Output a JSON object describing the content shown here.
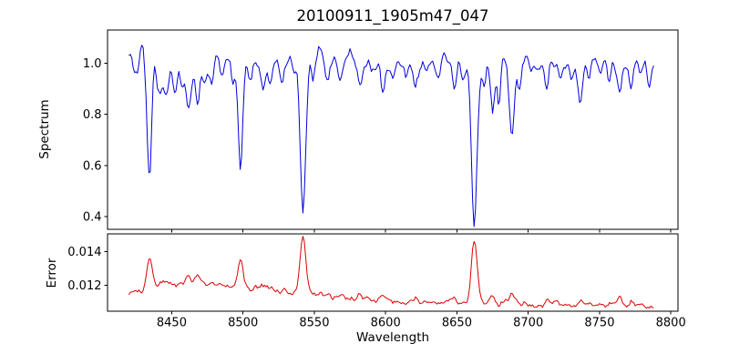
{
  "figure": {
    "background": "#ffffff",
    "spine_color": "#000000",
    "tick_color": "#000000",
    "text_color": "#000000"
  },
  "chart_data": {
    "type": "line",
    "title": "20100911_1905m47_047",
    "xlabel": "Wavelength",
    "legend": "none",
    "grid": false,
    "xlim": [
      8405,
      8805
    ],
    "xticks": [
      8450,
      8500,
      8550,
      8600,
      8650,
      8700,
      8750,
      8800
    ],
    "xtick_labels": [
      "8450",
      "8500",
      "8550",
      "8600",
      "8650",
      "8700",
      "8750",
      "8800"
    ],
    "x_start": 8420,
    "x_end": 8788,
    "x_step": 1,
    "seed": 20100911,
    "panels": [
      {
        "name": "spectrum",
        "ylabel": "Spectrum",
        "ylim": [
          0.35,
          1.13
        ],
        "yticks": [
          0.4,
          0.6,
          0.8,
          1.0
        ],
        "ytick_labels": [
          "0.4",
          "0.6",
          "0.8",
          "1.0"
        ],
        "line_color": "#0000dd",
        "continuum": 1.0,
        "noise_smooth_amp": 0.045,
        "noise_fine_amp": 0.01,
        "emission_bumps": [
          [
            8429,
            0.07,
            1.5
          ],
          [
            8437,
            0.09,
            1.2
          ],
          [
            8481,
            0.04,
            2.0
          ],
          [
            8553,
            0.05,
            1.5
          ],
          [
            8576,
            0.04,
            1.5
          ],
          [
            8609,
            0.03,
            1.5
          ],
          [
            8641,
            0.04,
            1.5
          ],
          [
            8700,
            0.03,
            1.5
          ],
          [
            8745,
            0.03,
            1.5
          ]
        ],
        "absorption_lines": [
          [
            8424,
            0.06,
            1.2
          ],
          [
            8427,
            0.05,
            1.0
          ],
          [
            8434.5,
            0.45,
            1.7
          ],
          [
            8441,
            0.1,
            1.5
          ],
          [
            8446,
            0.14,
            1.8
          ],
          [
            8452,
            0.12,
            1.4
          ],
          [
            8457,
            0.08,
            1.2
          ],
          [
            8462,
            0.17,
            2.2
          ],
          [
            8468,
            0.14,
            1.4
          ],
          [
            8473,
            0.08,
            1.2
          ],
          [
            8478,
            0.09,
            1.3
          ],
          [
            8485,
            0.07,
            1.2
          ],
          [
            8493,
            0.06,
            1.2
          ],
          [
            8498.3,
            0.42,
            1.6
          ],
          [
            8505,
            0.06,
            1.2
          ],
          [
            8514,
            0.11,
            1.4
          ],
          [
            8519,
            0.09,
            1.2
          ],
          [
            8527,
            0.07,
            1.2
          ],
          [
            8536,
            0.06,
            1.2
          ],
          [
            8542.1,
            0.58,
            1.9
          ],
          [
            8549,
            0.08,
            1.2
          ],
          [
            8559,
            0.06,
            1.2
          ],
          [
            8568,
            0.05,
            1.2
          ],
          [
            8582,
            0.09,
            1.4
          ],
          [
            8590,
            0.05,
            1.2
          ],
          [
            8598,
            0.11,
            1.4
          ],
          [
            8605,
            0.06,
            1.2
          ],
          [
            8614,
            0.07,
            1.2
          ],
          [
            8621,
            0.09,
            1.3
          ],
          [
            8628,
            0.05,
            1.2
          ],
          [
            8637,
            0.06,
            1.2
          ],
          [
            8648,
            0.09,
            1.3
          ],
          [
            8654,
            0.07,
            1.2
          ],
          [
            8662.2,
            0.63,
            1.9
          ],
          [
            8669,
            0.12,
            1.2
          ],
          [
            8675,
            0.19,
            1.4
          ],
          [
            8679.5,
            0.15,
            1.2
          ],
          [
            8688.6,
            0.3,
            1.7
          ],
          [
            8694,
            0.1,
            1.2
          ],
          [
            8702,
            0.06,
            1.2
          ],
          [
            8713,
            0.1,
            1.3
          ],
          [
            8722,
            0.06,
            1.2
          ],
          [
            8730,
            0.06,
            1.2
          ],
          [
            8736.5,
            0.15,
            1.4
          ],
          [
            8742,
            0.07,
            1.2
          ],
          [
            8750,
            0.06,
            1.2
          ],
          [
            8757,
            0.09,
            1.2
          ],
          [
            8764,
            0.13,
            1.4
          ],
          [
            8772,
            0.09,
            1.2
          ],
          [
            8779,
            0.06,
            1.2
          ],
          [
            8785,
            0.08,
            1.2
          ]
        ]
      },
      {
        "name": "error",
        "ylabel": "Error",
        "ylim": [
          0.01045,
          0.01505
        ],
        "yticks": [
          0.012,
          0.014
        ],
        "ytick_labels": [
          "0.012",
          "0.014"
        ],
        "line_color": "#dd0000",
        "baseline_start": 0.01128,
        "baseline_end": 0.01078,
        "broad_bumps": [
          [
            8457,
            0.0006,
            28
          ],
          [
            8515,
            0.0005,
            45
          ]
        ],
        "peaks": [
          [
            8434.5,
            0.0019,
            1.8
          ],
          [
            8446,
            0.0004,
            2.0
          ],
          [
            8462,
            0.0004,
            2.5
          ],
          [
            8468,
            0.0003,
            1.5
          ],
          [
            8498.3,
            0.0017,
            1.7
          ],
          [
            8514,
            0.0003,
            1.5
          ],
          [
            8542.1,
            0.0033,
            2.0
          ],
          [
            8582,
            0.0002,
            1.5
          ],
          [
            8598,
            0.0003,
            1.5
          ],
          [
            8621,
            0.0002,
            1.5
          ],
          [
            8648,
            0.0002,
            1.5
          ],
          [
            8662.2,
            0.0036,
            2.0
          ],
          [
            8675,
            0.0003,
            1.5
          ],
          [
            8688.6,
            0.0006,
            1.7
          ],
          [
            8713,
            0.0003,
            1.4
          ],
          [
            8736.5,
            0.0004,
            1.4
          ],
          [
            8757,
            0.0002,
            1.2
          ],
          [
            8764,
            0.0004,
            1.4
          ],
          [
            8772,
            0.0003,
            1.2
          ]
        ],
        "noise_smooth_amp": 0.00028,
        "noise_fine_amp": 8e-05
      }
    ]
  }
}
